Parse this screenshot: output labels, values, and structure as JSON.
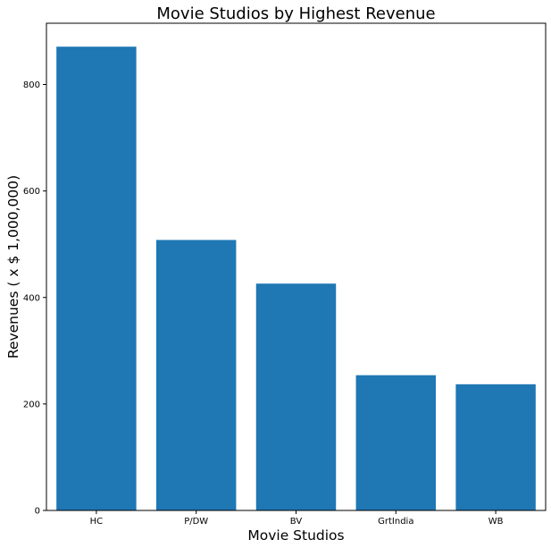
{
  "chart_data": {
    "type": "bar",
    "title": "Movie Studios by Highest Revenue",
    "xlabel": "Movie Studios",
    "ylabel": "Revenues ( x $ 1,000,000)",
    "categories": [
      "HC",
      "P/DW",
      "BV",
      "GrtIndia",
      "WB"
    ],
    "values": [
      871,
      508,
      426,
      254,
      237
    ],
    "ylim": [
      0,
      915
    ],
    "yticks": [
      0,
      200,
      400,
      600,
      800
    ],
    "bar_color": "#1f77b4",
    "grid": false
  }
}
